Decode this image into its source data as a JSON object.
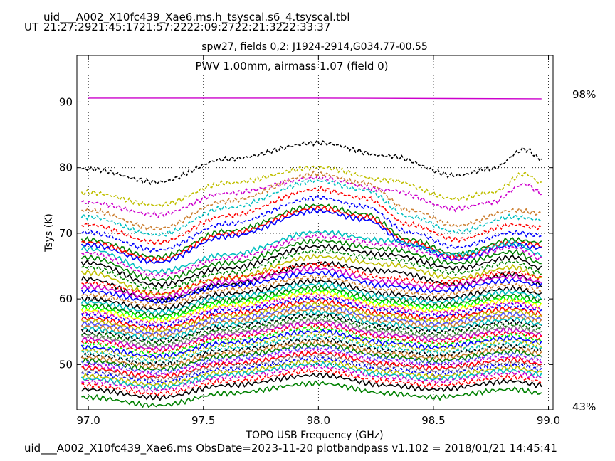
{
  "header": {
    "filename": "uid___A002_X10fc439_Xae6.ms.h_tsyscal.s6_4.tsyscal.tbl",
    "ut_label": "UT",
    "ut_times": [
      "21:27:29",
      "21:45:17",
      "21:57:22",
      "22:09:27",
      "22:21:32",
      "22:33:37"
    ]
  },
  "footer": {
    "text": "uid___A002_X10fc439_Xae6.ms  ObsDate=2023-11-20   plotbandpass v1.102 = 2018/01/21 14:45:41"
  },
  "colors": {
    "annotation": "#cc00cc",
    "series_palette": [
      "#000000",
      "#ff0000",
      "#0000ff",
      "#008000",
      "#00bfbf",
      "#cc00cc",
      "#bfbf00",
      "#cc8033",
      "#00ff00",
      "#ffff00",
      "#5050ff",
      "#808080"
    ]
  },
  "chart_data": {
    "type": "line",
    "title": "spw27,  fields 0,2: J1924-2914,G034.77-00.55",
    "xlabel": "TOPO USB Frequency (GHz)",
    "ylabel": "Tsys (K)",
    "xlim": [
      96.95,
      99.02
    ],
    "ylim": [
      43.1,
      97.1
    ],
    "xticks": [
      "97.0",
      "97.5",
      "98.0",
      "98.5",
      "99.0"
    ],
    "xtick_values": [
      97.0,
      97.5,
      98.0,
      98.5,
      99.0
    ],
    "yticks": [
      "50",
      "60",
      "70",
      "80",
      "90"
    ],
    "ytick_values": [
      50,
      60,
      70,
      80,
      90
    ],
    "grid": true,
    "annotation": "PWV 1.00mm, airmass 1.07 (field 0)",
    "atm_transmission": {
      "x": [
        97.0,
        98.0,
        98.97
      ],
      "y": [
        90.6,
        90.6,
        90.5
      ],
      "right_axis_labels": [
        "98%",
        "43%"
      ]
    },
    "series_shapes": [
      {
        "name": "A",
        "x": [
          97.0,
          97.3,
          97.6,
          98.0,
          98.3,
          98.6,
          98.75,
          98.9,
          98.97
        ],
        "y": [
          0,
          -2.0,
          1.5,
          4.0,
          2.0,
          -1.0,
          0,
          3.0,
          1.5
        ]
      },
      {
        "name": "B",
        "x": [
          97.0,
          97.3,
          97.6,
          98.0,
          98.2,
          98.4,
          98.6,
          98.85,
          98.97
        ],
        "y": [
          0,
          -3.0,
          1.5,
          6.0,
          4.5,
          0,
          -2.5,
          0,
          -0.5
        ]
      },
      {
        "name": "C",
        "x": [
          97.0,
          97.3,
          97.6,
          98.0,
          98.3,
          98.6,
          98.85,
          98.97
        ],
        "y": [
          0,
          -4.0,
          -1.0,
          3.0,
          1.5,
          -1.0,
          1.0,
          -1.0
        ]
      },
      {
        "name": "D",
        "x": [
          97.0,
          97.3,
          97.6,
          98.0,
          98.3,
          98.5,
          98.85,
          98.97
        ],
        "y": [
          0,
          -2.0,
          1.0,
          3.5,
          1.0,
          0,
          2.0,
          1.0
        ]
      }
    ],
    "series": [
      {
        "base": 79.8,
        "shape": 0,
        "color": 0,
        "dashed": true
      },
      {
        "base": 76.2,
        "shape": 0,
        "color": 6,
        "dashed": true
      },
      {
        "base": 74.7,
        "shape": 0,
        "color": 5,
        "dashed": true
      },
      {
        "base": 73.5,
        "shape": 1,
        "color": 7,
        "dashed": true
      },
      {
        "base": 72.5,
        "shape": 1,
        "color": 4,
        "dashed": true
      },
      {
        "base": 71.3,
        "shape": 1,
        "color": 1,
        "dashed": true
      },
      {
        "base": 70.1,
        "shape": 1,
        "color": 2,
        "dashed": true
      },
      {
        "base": 69.0,
        "shape": 1,
        "color": 3,
        "dashed": false
      },
      {
        "base": 68.6,
        "shape": 1,
        "color": 1,
        "dashed": false
      },
      {
        "base": 68.2,
        "shape": 1,
        "color": 2,
        "dashed": false
      },
      {
        "base": 67.6,
        "shape": 2,
        "color": 4,
        "dashed": false
      },
      {
        "base": 67.0,
        "shape": 2,
        "color": 5,
        "dashed": true
      },
      {
        "base": 66.3,
        "shape": 2,
        "color": 3,
        "dashed": false
      },
      {
        "base": 65.5,
        "shape": 2,
        "color": 0,
        "dashed": false
      },
      {
        "base": 64.8,
        "shape": 2,
        "color": 3,
        "dashed": true
      },
      {
        "base": 64.0,
        "shape": 2,
        "color": 6,
        "dashed": false
      },
      {
        "base": 63.0,
        "shape": 2,
        "color": 0,
        "dashed": false
      },
      {
        "base": 62.4,
        "shape": 3,
        "color": 1,
        "dashed": true
      },
      {
        "base": 61.8,
        "shape": 3,
        "color": 5,
        "dashed": false
      },
      {
        "base": 61.2,
        "shape": 3,
        "color": 2,
        "dashed": false
      },
      {
        "base": 60.6,
        "shape": 3,
        "color": 7,
        "dashed": true
      },
      {
        "base": 60.0,
        "shape": 3,
        "color": 0,
        "dashed": false
      },
      {
        "base": 59.5,
        "shape": 3,
        "color": 4,
        "dashed": false
      },
      {
        "base": 59.0,
        "shape": 3,
        "color": 3,
        "dashed": false
      },
      {
        "base": 58.6,
        "shape": 3,
        "color": 8,
        "dashed": false
      },
      {
        "base": 58.2,
        "shape": 3,
        "color": 9,
        "dashed": false
      },
      {
        "base": 57.8,
        "shape": 3,
        "color": 5,
        "dashed": true
      },
      {
        "base": 57.4,
        "shape": 3,
        "color": 2,
        "dashed": true
      },
      {
        "base": 57.0,
        "shape": 3,
        "color": 1,
        "dashed": false
      },
      {
        "base": 56.6,
        "shape": 3,
        "color": 6,
        "dashed": false
      },
      {
        "base": 56.2,
        "shape": 3,
        "color": 10,
        "dashed": false
      },
      {
        "base": 55.8,
        "shape": 3,
        "color": 7,
        "dashed": false
      },
      {
        "base": 55.4,
        "shape": 3,
        "color": 4,
        "dashed": false
      },
      {
        "base": 55.0,
        "shape": 3,
        "color": 0,
        "dashed": true
      },
      {
        "base": 54.6,
        "shape": 3,
        "color": 3,
        "dashed": true
      },
      {
        "base": 54.2,
        "shape": 3,
        "color": 11,
        "dashed": false
      },
      {
        "base": 53.8,
        "shape": 3,
        "color": 5,
        "dashed": false
      },
      {
        "base": 53.4,
        "shape": 3,
        "color": 1,
        "dashed": true
      },
      {
        "base": 53.0,
        "shape": 3,
        "color": 8,
        "dashed": true
      },
      {
        "base": 52.6,
        "shape": 3,
        "color": 2,
        "dashed": false
      },
      {
        "base": 52.2,
        "shape": 3,
        "color": 6,
        "dashed": true
      },
      {
        "base": 51.8,
        "shape": 3,
        "color": 4,
        "dashed": true
      },
      {
        "base": 51.4,
        "shape": 3,
        "color": 0,
        "dashed": true
      },
      {
        "base": 51.0,
        "shape": 3,
        "color": 7,
        "dashed": false
      },
      {
        "base": 50.6,
        "shape": 3,
        "color": 3,
        "dashed": false
      },
      {
        "base": 50.2,
        "shape": 3,
        "color": 10,
        "dashed": true
      },
      {
        "base": 49.8,
        "shape": 3,
        "color": 5,
        "dashed": true
      },
      {
        "base": 49.4,
        "shape": 3,
        "color": 1,
        "dashed": false
      },
      {
        "base": 49.0,
        "shape": 3,
        "color": 11,
        "dashed": true
      },
      {
        "base": 48.6,
        "shape": 3,
        "color": 2,
        "dashed": true
      },
      {
        "base": 48.2,
        "shape": 3,
        "color": 6,
        "dashed": false
      },
      {
        "base": 47.8,
        "shape": 3,
        "color": 4,
        "dashed": false
      },
      {
        "base": 47.4,
        "shape": 3,
        "color": 5,
        "dashed": true
      },
      {
        "base": 46.8,
        "shape": 3,
        "color": 1,
        "dashed": true
      },
      {
        "base": 46.2,
        "shape": 3,
        "color": 0,
        "dashed": false
      },
      {
        "base": 45.0,
        "shape": 3,
        "color": 3,
        "dashed": false
      }
    ]
  }
}
